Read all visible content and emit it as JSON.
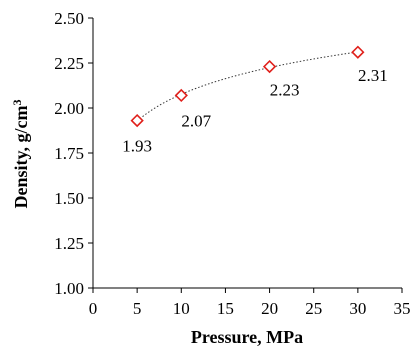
{
  "chart_data": {
    "type": "scatter",
    "xlabel": "Pressure, MPa",
    "ylabel_main": "Density, g/cm",
    "ylabel_sup": "3",
    "xlim": [
      0,
      35
    ],
    "ylim": [
      1.0,
      2.5
    ],
    "xticks": [
      0,
      5,
      10,
      15,
      20,
      25,
      30,
      35
    ],
    "yticks": [
      "1.00",
      "1.25",
      "1.50",
      "1.75",
      "2.00",
      "2.25",
      "2.50"
    ],
    "grid": false,
    "legend": "none",
    "trendline": "dotted logarithmic fit",
    "marker": "diamond",
    "marker_color": "#e0201b",
    "points": [
      {
        "x": 5,
        "y": 1.93,
        "label": "1.93"
      },
      {
        "x": 10,
        "y": 2.07,
        "label": "2.07"
      },
      {
        "x": 20,
        "y": 2.23,
        "label": "2.23"
      },
      {
        "x": 30,
        "y": 2.31,
        "label": "2.31"
      }
    ]
  }
}
